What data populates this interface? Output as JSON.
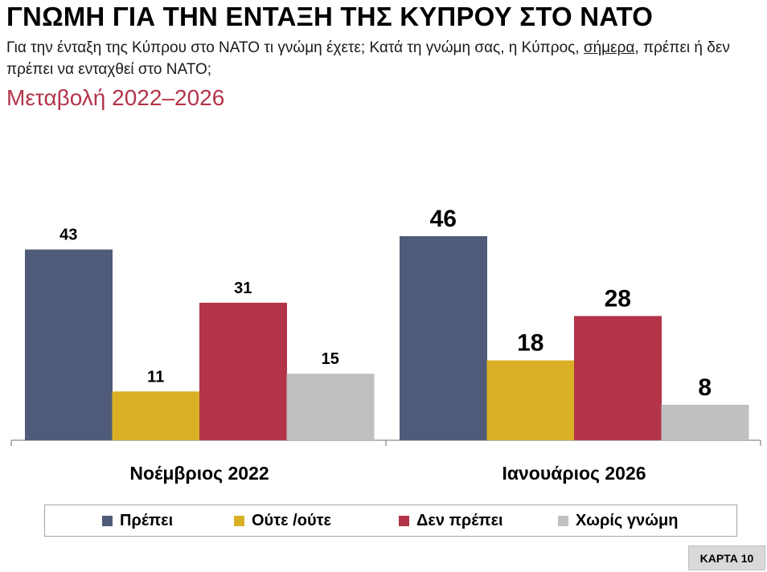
{
  "header": {
    "title": "ΓΝΩΜΗ ΓΙΑ ΤΗΝ ΕΝΤΑΞΗ ΤΗΣ ΚΥΠΡΟΥ ΣΤΟ ΝΑΤΟ",
    "question_part1": "Για την ένταξη της Κύπρου στο ΝΑΤΟ τι γνώμη έχετε; Κατά τη γνώμη σας, η Κύπρος, ",
    "question_underlined": "σήμερα",
    "question_part2": ", πρέπει ή δεν πρέπει να ενταχθεί στο ΝΑΤΟ;",
    "subtitle": "Μεταβολή 2022–2026"
  },
  "badge": "ΚΑΡΤΑ 10",
  "colors": {
    "prepei": "#4f5b78",
    "oute": "#d9b025",
    "den_prepei": "#b33448",
    "xoris": "#c0c0c0",
    "subtitle": "#b3344a",
    "axis": "#8c8c8c"
  },
  "chart_data": {
    "type": "bar",
    "title": "",
    "xlabel": "",
    "ylabel": "",
    "categories": [
      "Νοέμβριος 2022",
      "Ιανουάριος 2026"
    ],
    "series": [
      {
        "name": "Πρέπει",
        "values": [
          43,
          46
        ],
        "color": "#4f5b78"
      },
      {
        "name": "Ούτε /ούτε",
        "values": [
          11,
          18
        ],
        "color": "#d9b025"
      },
      {
        "name": "Δεν πρέπει",
        "values": [
          31,
          28
        ],
        "color": "#b33448"
      },
      {
        "name": "Χωρίς γνώμη",
        "values": [
          15,
          8
        ],
        "color": "#c0c0c0"
      }
    ],
    "ylim": [
      0,
      46
    ],
    "grid": false,
    "legend_position": "bottom"
  }
}
